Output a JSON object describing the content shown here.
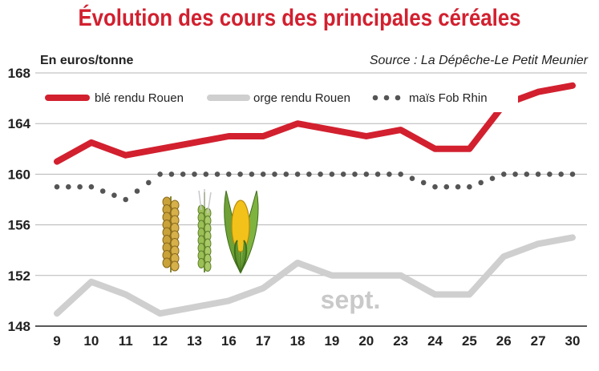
{
  "title": "Évolution des cours des principales céréales",
  "unit_label": "En euros/tonne",
  "source": "Source : La Dépêche-Le Petit Meunier",
  "annotation": "sept.",
  "colors": {
    "title": "#d2202f",
    "ble": "#d2202f",
    "orge": "#cfcfcf",
    "mais": "#555555",
    "grid": "#b5b5b5"
  },
  "chart_data": {
    "type": "line",
    "categories": [
      "9",
      "10",
      "11",
      "12",
      "13",
      "16",
      "17",
      "18",
      "19",
      "20",
      "23",
      "24",
      "25",
      "26",
      "27",
      "30"
    ],
    "ylim": [
      148,
      168
    ],
    "yticks": [
      "148",
      "152",
      "156",
      "160",
      "164",
      "168"
    ],
    "grid": "horizontal",
    "legend_position": "top",
    "series": [
      {
        "name": "blé rendu Rouen",
        "style": "thick-red",
        "values": [
          161,
          162.5,
          161.5,
          162,
          162.5,
          163,
          163,
          164,
          163.5,
          163,
          163.5,
          162,
          162,
          165.5,
          166.5,
          167
        ]
      },
      {
        "name": "orge rendu Rouen",
        "style": "thick-light-gray",
        "values": [
          149,
          151.5,
          150.5,
          149,
          149.5,
          150,
          151,
          153,
          152,
          152,
          152,
          150.5,
          150.5,
          153.5,
          154.5,
          155
        ]
      },
      {
        "name": "maïs Fob Rhin",
        "style": "dotted-dark-gray",
        "values": [
          159,
          159,
          158,
          160,
          160,
          160,
          160,
          160,
          160,
          160,
          160,
          159,
          159,
          160,
          160,
          160
        ]
      }
    ]
  }
}
